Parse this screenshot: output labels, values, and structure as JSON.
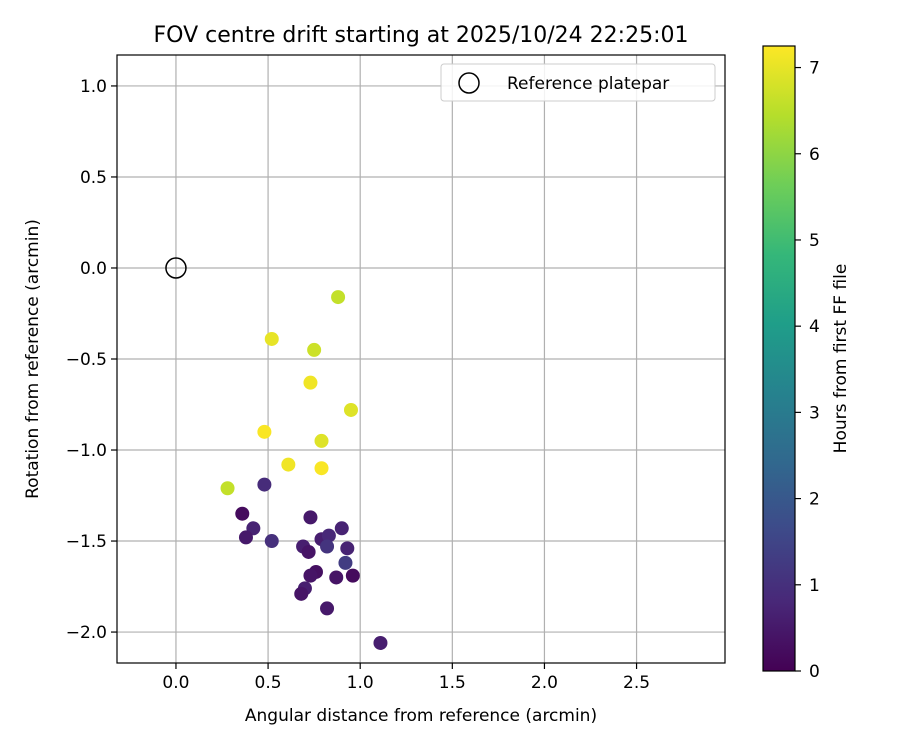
{
  "chart_data": {
    "type": "scatter",
    "title": "FOV centre drift starting at 2025/10/24 22:25:01",
    "xlabel": "Angular distance from reference (arcmin)",
    "ylabel": "Rotation from reference (arcmin)",
    "xlim": [
      -0.32,
      2.98
    ],
    "ylim": [
      -2.17,
      1.17
    ],
    "xticks": [
      0.0,
      0.5,
      1.0,
      1.5,
      2.0,
      2.5
    ],
    "xtick_labels": [
      "0.0",
      "0.5",
      "1.0",
      "1.5",
      "2.0",
      "2.5"
    ],
    "yticks": [
      1.0,
      0.5,
      0.0,
      -0.5,
      -1.0,
      -1.5,
      -2.0
    ],
    "ytick_labels": [
      "1.0",
      "0.5",
      "0.0",
      "−0.5",
      "−1.0",
      "−1.5",
      "−2.0"
    ],
    "grid": true,
    "legend": {
      "position": "top-right",
      "label": "Reference platepar"
    },
    "reference_point": {
      "x": 0.0,
      "y": 0.0
    },
    "colorbar": {
      "label": "Hours from first FF file",
      "min": 0,
      "max": 7.25,
      "ticks": [
        0,
        1,
        2,
        3,
        4,
        5,
        6,
        7
      ],
      "tick_labels": [
        "0",
        "1",
        "2",
        "3",
        "4",
        "5",
        "6",
        "7"
      ],
      "colormap": "viridis"
    },
    "points": [
      {
        "x": 0.88,
        "y": -0.16,
        "c": 6.6
      },
      {
        "x": 0.52,
        "y": -0.39,
        "c": 7.0
      },
      {
        "x": 0.75,
        "y": -0.45,
        "c": 6.7
      },
      {
        "x": 0.73,
        "y": -0.63,
        "c": 7.1
      },
      {
        "x": 0.95,
        "y": -0.78,
        "c": 6.9
      },
      {
        "x": 0.48,
        "y": -0.9,
        "c": 7.2
      },
      {
        "x": 0.79,
        "y": -0.95,
        "c": 6.9
      },
      {
        "x": 0.61,
        "y": -1.08,
        "c": 7.1
      },
      {
        "x": 0.79,
        "y": -1.1,
        "c": 7.2
      },
      {
        "x": 0.28,
        "y": -1.21,
        "c": 6.6
      },
      {
        "x": 0.48,
        "y": -1.19,
        "c": 0.9
      },
      {
        "x": 0.36,
        "y": -1.35,
        "c": 0.2
      },
      {
        "x": 0.42,
        "y": -1.43,
        "c": 0.7
      },
      {
        "x": 0.38,
        "y": -1.48,
        "c": 0.5
      },
      {
        "x": 0.52,
        "y": -1.5,
        "c": 1.0
      },
      {
        "x": 0.73,
        "y": -1.37,
        "c": 0.5
      },
      {
        "x": 0.9,
        "y": -1.43,
        "c": 0.7
      },
      {
        "x": 0.79,
        "y": -1.49,
        "c": 0.6
      },
      {
        "x": 0.83,
        "y": -1.47,
        "c": 0.8
      },
      {
        "x": 0.82,
        "y": -1.53,
        "c": 1.1
      },
      {
        "x": 0.69,
        "y": -1.53,
        "c": 0.6
      },
      {
        "x": 0.72,
        "y": -1.56,
        "c": 0.4
      },
      {
        "x": 0.93,
        "y": -1.54,
        "c": 0.7
      },
      {
        "x": 0.92,
        "y": -1.62,
        "c": 1.3
      },
      {
        "x": 0.76,
        "y": -1.67,
        "c": 0.3
      },
      {
        "x": 0.73,
        "y": -1.69,
        "c": 0.4
      },
      {
        "x": 0.87,
        "y": -1.7,
        "c": 0.4
      },
      {
        "x": 0.96,
        "y": -1.69,
        "c": 0.2
      },
      {
        "x": 0.7,
        "y": -1.76,
        "c": 0.6
      },
      {
        "x": 0.68,
        "y": -1.79,
        "c": 0.4
      },
      {
        "x": 0.82,
        "y": -1.87,
        "c": 0.5
      },
      {
        "x": 1.11,
        "y": -2.06,
        "c": 0.6
      }
    ]
  }
}
